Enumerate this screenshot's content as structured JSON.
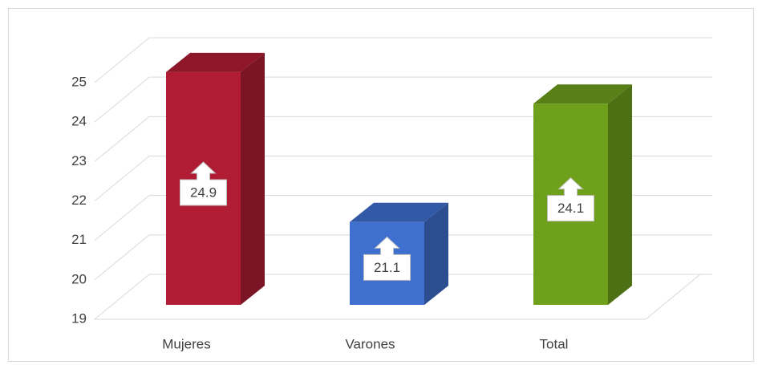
{
  "chart_data": {
    "type": "bar3d",
    "categories": [
      "Mujeres",
      "Varones",
      "Total"
    ],
    "values": [
      24.9,
      21.1,
      24.1
    ],
    "colors": [
      "#b01c33",
      "#3f6fcf",
      "#6fa01c"
    ],
    "ylim": [
      19,
      25
    ],
    "yticks": [
      19,
      20,
      21,
      22,
      23,
      24,
      25
    ],
    "grid": true
  }
}
